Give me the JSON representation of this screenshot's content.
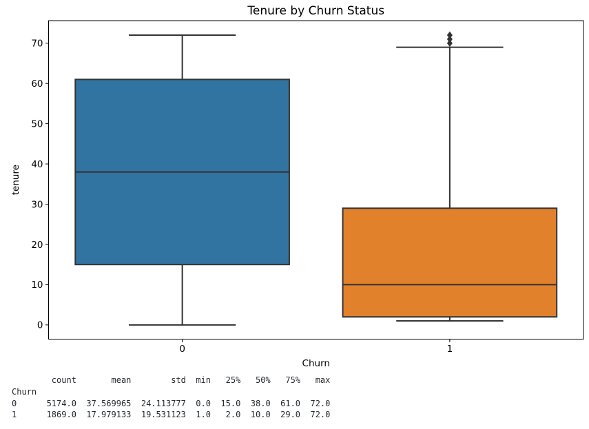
{
  "chart_data": {
    "type": "box",
    "title": "Tenure by Churn Status",
    "xlabel": "Churn",
    "ylabel": "tenure",
    "categories": [
      "0",
      "1"
    ],
    "ylim": [
      -3.53,
      75.6
    ],
    "yticks": [
      0,
      10,
      20,
      30,
      40,
      50,
      60,
      70
    ],
    "grid": false,
    "legend_position": "none",
    "edge_color": "#333333",
    "spine_color": "#000000",
    "text_color": "#000000",
    "series": [
      {
        "name": "Churn 0",
        "category": "0",
        "fill_color": "#3274a1",
        "whisker_low": 0,
        "q1": 15,
        "median": 38,
        "q3": 61,
        "whisker_high": 72,
        "outliers": []
      },
      {
        "name": "Churn 1",
        "category": "1",
        "fill_color": "#e1812c",
        "whisker_low": 1,
        "q1": 2,
        "median": 10,
        "q3": 29,
        "whisker_high": 69,
        "outliers": [
          70,
          71,
          72
        ]
      }
    ]
  },
  "stats_table": {
    "index_name": "Churn",
    "columns": [
      "count",
      "mean",
      "std",
      "min",
      "25%",
      "50%",
      "75%",
      "max"
    ],
    "rows": [
      {
        "index": "0",
        "count": 5174.0,
        "mean": 37.569965,
        "std": 24.113777,
        "min": 0.0,
        "p25": 15.0,
        "p50": 38.0,
        "p75": 61.0,
        "max": 72.0
      },
      {
        "index": "1",
        "count": 1869.0,
        "mean": 17.979133,
        "std": 19.531123,
        "min": 1.0,
        "p25": 2.0,
        "p50": 10.0,
        "p75": 29.0,
        "max": 72.0
      }
    ],
    "lines": [
      "        count       mean        std  min   25%   50%   75%   max",
      "Churn",
      "0      5174.0  37.569965  24.113777  0.0  15.0  38.0  61.0  72.0",
      "1      1869.0  17.979133  19.531123  1.0   2.0  10.0  29.0  72.0"
    ]
  }
}
